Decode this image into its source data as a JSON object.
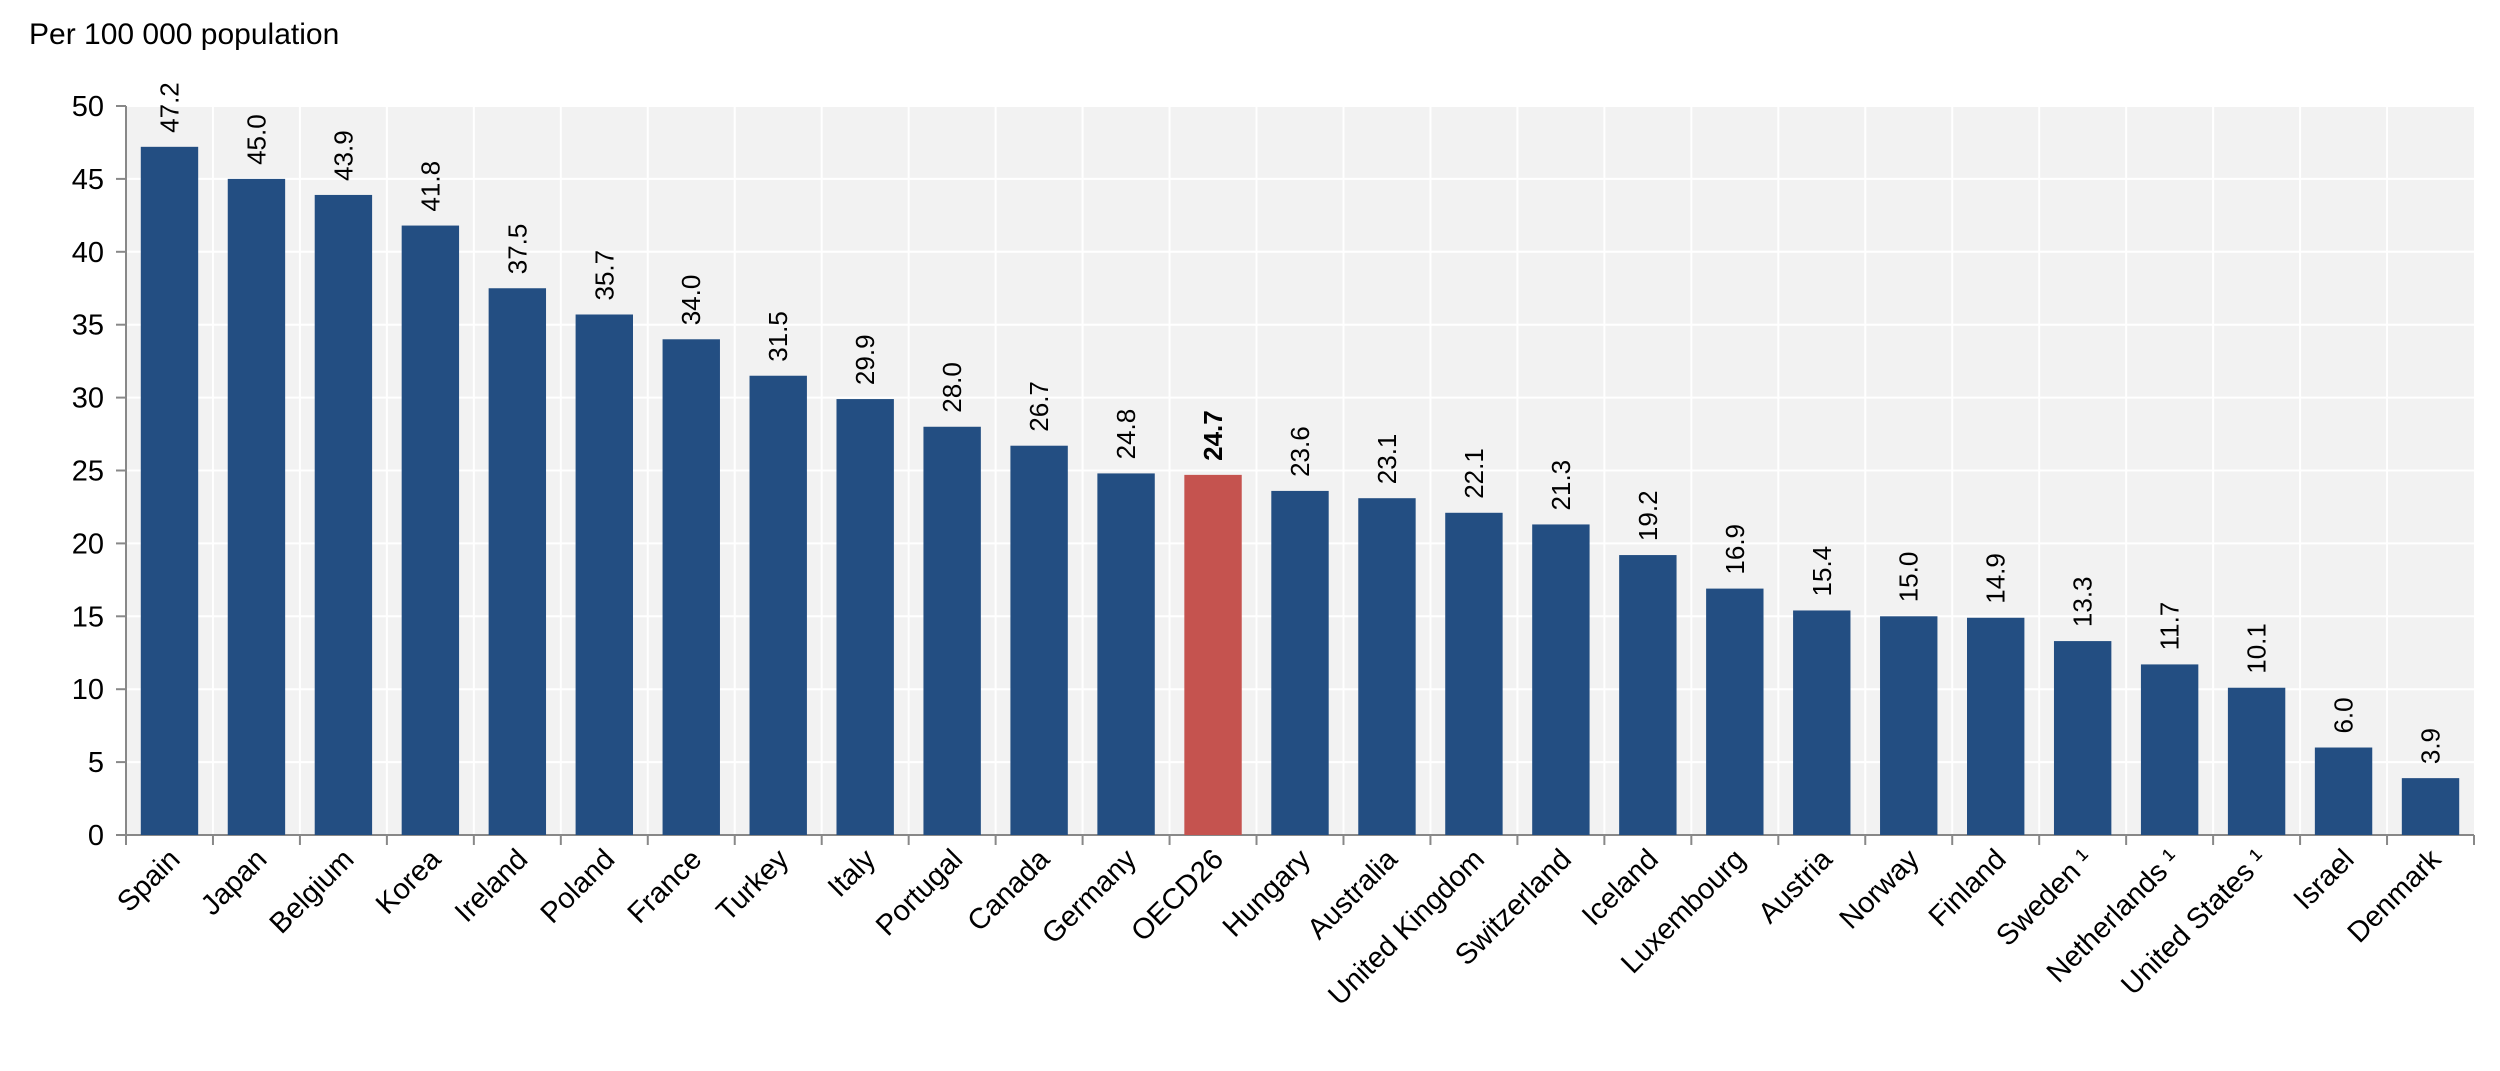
{
  "chart_data": {
    "type": "bar",
    "ylabel": "Per 100 000 population",
    "ylim": [
      0,
      50
    ],
    "yticks": [
      0,
      5,
      10,
      15,
      20,
      25,
      30,
      35,
      40,
      45,
      50
    ],
    "grid": true,
    "categories": [
      "Spain",
      "Japan",
      "Belgium",
      "Korea",
      "Ireland",
      "Poland",
      "France",
      "Turkey",
      "Italy",
      "Portugal",
      "Canada",
      "Germany",
      "OECD26",
      "Hungary",
      "Australia",
      "United Kingdom",
      "Switzerland",
      "Iceland",
      "Luxembourg",
      "Austria",
      "Norway",
      "Finland",
      "Sweden ¹",
      "Netherlands ¹",
      "United States ¹",
      "Israel",
      "Denmark"
    ],
    "values": [
      47.2,
      45.0,
      43.9,
      41.8,
      37.5,
      35.7,
      34.0,
      31.5,
      29.9,
      28.0,
      26.7,
      24.8,
      24.7,
      23.6,
      23.1,
      22.1,
      21.3,
      19.2,
      16.9,
      15.4,
      15.0,
      14.9,
      13.3,
      11.7,
      10.1,
      6.0,
      3.9
    ],
    "value_labels": [
      "47.2",
      "45.0",
      "43.9",
      "41.8",
      "37.5",
      "35.7",
      "34.0",
      "31.5",
      "29.9",
      "28.0",
      "26.7",
      "24.8",
      "24.7",
      "23.6",
      "23.1",
      "22.1",
      "21.3",
      "19.2",
      "16.9",
      "15.4",
      "15.0",
      "14.9",
      "13.3",
      "11.7",
      "10.1",
      "6.0",
      "3.9"
    ],
    "highlight_category": "OECD26",
    "colors": {
      "bar": "#234e82",
      "highlight": "#c5534f",
      "plot_background": "#f2f2f2",
      "grid": "#ffffff",
      "axis": "#888888"
    }
  }
}
